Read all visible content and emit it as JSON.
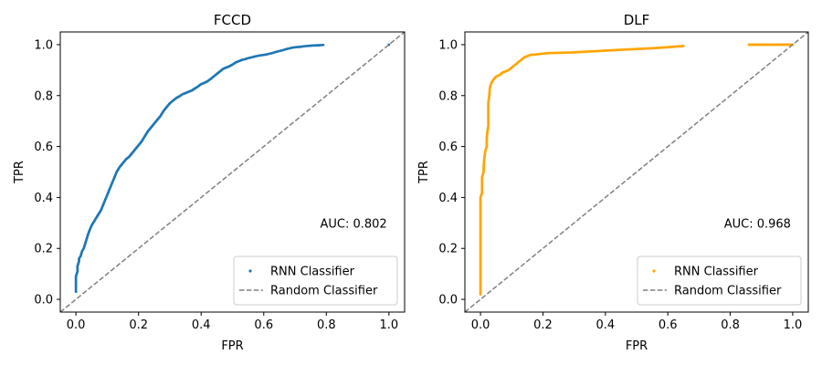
{
  "chart_data": [
    {
      "type": "scatter",
      "title": "FCCD",
      "xlabel": "FPR",
      "ylabel": "TPR",
      "xlim": [
        -0.05,
        1.05
      ],
      "ylim": [
        -0.05,
        1.05
      ],
      "xticks": [
        "0.0",
        "0.2",
        "0.4",
        "0.6",
        "0.8",
        "1.0"
      ],
      "yticks": [
        "0.0",
        "0.2",
        "0.4",
        "0.6",
        "0.8",
        "1.0"
      ],
      "grid": false,
      "legend_position": "lower-right",
      "annotation": "AUC: 0.802",
      "series": [
        {
          "name": "RNN Classifier",
          "kind": "scatter",
          "color": "#1f77b4",
          "x": [
            0.0,
            0.0,
            0.0,
            0.005,
            0.005,
            0.01,
            0.01,
            0.015,
            0.02,
            0.025,
            0.03,
            0.035,
            0.04,
            0.05,
            0.06,
            0.07,
            0.08,
            0.09,
            0.1,
            0.11,
            0.12,
            0.13,
            0.14,
            0.15,
            0.16,
            0.17,
            0.18,
            0.19,
            0.2,
            0.21,
            0.22,
            0.23,
            0.24,
            0.25,
            0.26,
            0.27,
            0.28,
            0.29,
            0.3,
            0.31,
            0.32,
            0.33,
            0.34,
            0.35,
            0.36,
            0.37,
            0.38,
            0.39,
            0.4,
            0.41,
            0.42,
            0.43,
            0.44,
            0.45,
            0.46,
            0.47,
            0.48,
            0.49,
            0.5,
            0.51,
            0.52,
            0.53,
            0.54,
            0.55,
            0.56,
            0.57,
            0.58,
            0.59,
            0.6,
            0.61,
            0.62,
            0.63,
            0.64,
            0.65,
            0.66,
            0.67,
            0.68,
            0.69,
            0.7,
            0.71,
            0.72,
            0.73,
            0.74,
            0.75,
            0.76,
            0.78,
            0.79,
            1.0
          ],
          "y": [
            0.03,
            0.06,
            0.09,
            0.11,
            0.13,
            0.15,
            0.16,
            0.17,
            0.19,
            0.2,
            0.22,
            0.24,
            0.26,
            0.29,
            0.31,
            0.33,
            0.35,
            0.38,
            0.41,
            0.44,
            0.47,
            0.5,
            0.52,
            0.535,
            0.55,
            0.56,
            0.575,
            0.59,
            0.605,
            0.62,
            0.64,
            0.66,
            0.675,
            0.69,
            0.705,
            0.72,
            0.74,
            0.755,
            0.77,
            0.78,
            0.79,
            0.797,
            0.805,
            0.81,
            0.815,
            0.82,
            0.828,
            0.836,
            0.845,
            0.85,
            0.856,
            0.865,
            0.875,
            0.885,
            0.895,
            0.905,
            0.91,
            0.915,
            0.922,
            0.93,
            0.935,
            0.94,
            0.943,
            0.947,
            0.95,
            0.953,
            0.956,
            0.958,
            0.96,
            0.962,
            0.965,
            0.968,
            0.972,
            0.975,
            0.978,
            0.982,
            0.985,
            0.988,
            0.99,
            0.991,
            0.992,
            0.994,
            0.995,
            0.996,
            0.997,
            0.998,
            0.999,
            1.0
          ]
        },
        {
          "name": "Random Classifier",
          "kind": "line",
          "style": "dashed",
          "color": "#808080",
          "x": [
            -0.05,
            1.05
          ],
          "y": [
            -0.05,
            1.05
          ]
        }
      ]
    },
    {
      "type": "scatter",
      "title": "DLF",
      "xlabel": "FPR",
      "ylabel": "TPR",
      "xlim": [
        -0.05,
        1.05
      ],
      "ylim": [
        -0.05,
        1.05
      ],
      "xticks": [
        "0.0",
        "0.2",
        "0.4",
        "0.6",
        "0.8",
        "1.0"
      ],
      "yticks": [
        "0.0",
        "0.2",
        "0.4",
        "0.6",
        "0.8",
        "1.0"
      ],
      "grid": false,
      "legend_position": "lower-right",
      "annotation": "AUC: 0.968",
      "series": [
        {
          "name": "RNN Classifier",
          "kind": "scatter",
          "color": "#ffa500",
          "x": [
            0.0,
            0.0,
            0.0,
            0.0,
            0.0,
            0.0,
            0.0,
            0.0,
            0.0,
            0.0,
            0.0,
            0.0,
            0.0,
            0.0,
            0.0,
            0.0,
            0.0,
            0.0,
            0.0,
            0.0,
            0.005,
            0.005,
            0.005,
            0.01,
            0.01,
            0.012,
            0.015,
            0.02,
            0.02,
            0.022,
            0.025,
            0.025,
            0.028,
            0.03,
            0.035,
            0.04,
            0.05,
            0.06,
            0.07,
            0.08,
            0.09,
            0.1,
            0.11,
            0.12,
            0.13,
            0.14,
            0.15,
            0.16,
            0.18,
            0.2,
            0.22,
            0.25,
            0.28,
            0.3,
            0.33,
            0.36,
            0.39,
            0.45,
            0.5,
            0.55,
            0.6,
            0.65,
            0.86,
            1.0
          ],
          "y": [
            0.02,
            0.04,
            0.06,
            0.08,
            0.1,
            0.12,
            0.14,
            0.16,
            0.18,
            0.2,
            0.22,
            0.24,
            0.26,
            0.28,
            0.3,
            0.32,
            0.34,
            0.36,
            0.38,
            0.4,
            0.42,
            0.45,
            0.48,
            0.5,
            0.52,
            0.55,
            0.58,
            0.6,
            0.63,
            0.66,
            0.68,
            0.77,
            0.8,
            0.83,
            0.85,
            0.86,
            0.875,
            0.88,
            0.89,
            0.895,
            0.9,
            0.91,
            0.92,
            0.93,
            0.94,
            0.95,
            0.955,
            0.96,
            0.962,
            0.965,
            0.967,
            0.968,
            0.969,
            0.97,
            0.972,
            0.974,
            0.976,
            0.98,
            0.983,
            0.986,
            0.99,
            0.995,
            1.0,
            1.0
          ]
        },
        {
          "name": "Random Classifier",
          "kind": "line",
          "style": "dashed",
          "color": "#808080",
          "x": [
            -0.05,
            1.05
          ],
          "y": [
            -0.05,
            1.05
          ]
        }
      ]
    }
  ]
}
